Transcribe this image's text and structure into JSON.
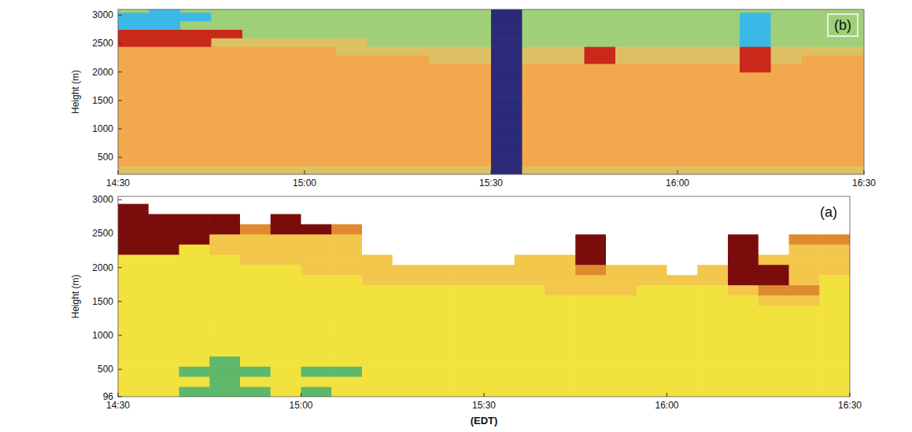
{
  "chart_data": [
    {
      "type": "heatmap",
      "title": "(b)",
      "y_label": "Height (m)",
      "x": [
        872.5,
        877.5,
        882.5,
        887.5,
        892.5,
        897.5,
        902.5,
        907.5,
        912.5,
        917.5,
        922.5,
        927.5,
        932.5,
        937.5,
        942.5,
        947.5,
        952.5,
        957.5,
        962.5,
        967.5,
        972.5,
        977.5,
        982.5,
        987.5
      ],
      "y": [
        275,
        425,
        575,
        725,
        875,
        1025,
        1175,
        1325,
        1475,
        1625,
        1775,
        1925,
        2075,
        2225,
        2375,
        2525,
        2675,
        2825,
        2975,
        3125
      ],
      "values": [
        [
          2,
          2,
          2,
          2,
          2,
          2,
          2,
          2,
          2,
          2,
          2,
          2,
          5,
          2,
          2,
          2,
          2,
          2,
          2,
          2,
          2,
          2,
          2,
          2
        ],
        [
          1,
          1,
          1,
          1,
          1,
          1,
          1,
          1,
          1,
          1,
          1,
          1,
          5,
          1,
          1,
          1,
          1,
          1,
          1,
          1,
          1,
          1,
          1,
          1
        ],
        [
          1,
          1,
          1,
          1,
          1,
          1,
          1,
          1,
          1,
          1,
          1,
          1,
          5,
          1,
          1,
          1,
          1,
          1,
          1,
          1,
          1,
          1,
          1,
          1
        ],
        [
          1,
          1,
          1,
          1,
          1,
          1,
          1,
          1,
          1,
          1,
          1,
          1,
          5,
          1,
          1,
          1,
          1,
          1,
          1,
          1,
          1,
          1,
          1,
          1
        ],
        [
          1,
          1,
          1,
          1,
          1,
          1,
          1,
          1,
          1,
          1,
          1,
          1,
          5,
          1,
          1,
          1,
          1,
          1,
          1,
          1,
          1,
          1,
          1,
          1
        ],
        [
          1,
          1,
          1,
          1,
          1,
          1,
          1,
          1,
          1,
          1,
          1,
          1,
          5,
          1,
          1,
          1,
          1,
          1,
          1,
          1,
          1,
          1,
          1,
          1
        ],
        [
          1,
          1,
          1,
          1,
          1,
          1,
          1,
          1,
          1,
          1,
          1,
          1,
          5,
          1,
          1,
          1,
          1,
          1,
          1,
          1,
          1,
          1,
          1,
          1
        ],
        [
          1,
          1,
          1,
          1,
          1,
          1,
          1,
          1,
          1,
          1,
          1,
          1,
          5,
          1,
          1,
          1,
          1,
          1,
          1,
          1,
          1,
          1,
          1,
          1
        ],
        [
          1,
          1,
          1,
          1,
          1,
          1,
          1,
          1,
          1,
          1,
          1,
          1,
          5,
          1,
          1,
          1,
          1,
          1,
          1,
          1,
          1,
          1,
          1,
          1
        ],
        [
          1,
          1,
          1,
          1,
          1,
          1,
          1,
          1,
          1,
          1,
          1,
          1,
          5,
          1,
          1,
          1,
          1,
          1,
          1,
          1,
          1,
          1,
          1,
          1
        ],
        [
          1,
          1,
          1,
          1,
          1,
          1,
          1,
          1,
          1,
          1,
          1,
          1,
          5,
          1,
          1,
          1,
          1,
          1,
          1,
          1,
          1,
          1,
          1,
          1
        ],
        [
          1,
          1,
          1,
          1,
          1,
          1,
          1,
          1,
          1,
          1,
          1,
          1,
          5,
          1,
          1,
          1,
          1,
          1,
          1,
          1,
          1,
          1,
          1,
          1
        ],
        [
          1,
          1,
          1,
          1,
          1,
          1,
          1,
          1,
          1,
          1,
          1,
          1,
          5,
          1,
          1,
          1,
          1,
          1,
          1,
          1,
          3,
          1,
          1,
          1
        ],
        [
          1,
          1,
          1,
          1,
          1,
          1,
          1,
          1,
          1,
          1,
          2,
          2,
          5,
          2,
          2,
          3,
          2,
          2,
          2,
          2,
          3,
          2,
          1,
          1
        ],
        [
          1,
          1,
          1,
          1,
          1,
          1,
          1,
          2,
          2,
          2,
          2,
          2,
          5,
          2,
          2,
          3,
          2,
          2,
          2,
          2,
          3,
          2,
          2,
          2
        ],
        [
          3,
          3,
          3,
          2,
          2,
          2,
          2,
          2,
          0,
          0,
          0,
          0,
          5,
          0,
          0,
          0,
          0,
          0,
          0,
          0,
          4,
          0,
          0,
          0
        ],
        [
          3,
          3,
          3,
          3,
          0,
          0,
          0,
          0,
          0,
          0,
          0,
          0,
          5,
          0,
          0,
          0,
          0,
          0,
          0,
          0,
          4,
          0,
          0,
          0
        ],
        [
          4,
          4,
          0,
          0,
          0,
          0,
          0,
          0,
          0,
          0,
          0,
          0,
          5,
          0,
          0,
          0,
          0,
          0,
          0,
          0,
          4,
          0,
          0,
          0
        ],
        [
          4,
          4,
          4,
          0,
          0,
          0,
          0,
          0,
          0,
          0,
          0,
          0,
          5,
          0,
          0,
          0,
          0,
          0,
          0,
          0,
          4,
          0,
          0,
          0
        ],
        [
          0,
          4,
          0,
          0,
          0,
          0,
          0,
          0,
          0,
          0,
          0,
          0,
          5,
          0,
          0,
          0,
          0,
          0,
          0,
          0,
          0,
          0,
          0,
          0
        ]
      ],
      "colors": [
        "#9fcf78",
        "#f2a84c",
        "#dcc063",
        "#c9281b",
        "#3bb9e6",
        "#2b2a78"
      ],
      "xlim": [
        870,
        990
      ],
      "ylim": [
        200,
        3100
      ],
      "xticks": [
        {
          "value": 870,
          "label": "14:30"
        },
        {
          "value": 900,
          "label": "15:00"
        },
        {
          "value": 930,
          "label": "15:30"
        },
        {
          "value": 960,
          "label": "16:00"
        },
        {
          "value": 990,
          "label": "16:30"
        }
      ],
      "yticks": [
        500,
        1000,
        1500,
        2000,
        2500,
        3000
      ]
    },
    {
      "type": "heatmap",
      "title": "(a)",
      "x_label": "(EDT)",
      "y_label": "Height (m)",
      "x": [
        872.5,
        877.5,
        882.5,
        887.5,
        892.5,
        897.5,
        902.5,
        907.5,
        912.5,
        917.5,
        922.5,
        927.5,
        932.5,
        937.5,
        942.5,
        947.5,
        952.5,
        957.5,
        962.5,
        967.5,
        972.5,
        977.5,
        982.5,
        987.5
      ],
      "y": [
        171,
        321,
        471,
        621,
        771,
        921,
        1071,
        1221,
        1371,
        1521,
        1671,
        1821,
        1971,
        2121,
        2271,
        2421,
        2571,
        2721,
        2871,
        3021
      ],
      "values": [
        [
          1,
          1,
          5,
          5,
          5,
          1,
          5,
          1,
          1,
          1,
          1,
          1,
          1,
          1,
          1,
          1,
          1,
          1,
          1,
          1,
          1,
          1,
          1,
          1
        ],
        [
          1,
          1,
          1,
          5,
          1,
          1,
          1,
          1,
          1,
          1,
          1,
          1,
          1,
          1,
          1,
          1,
          1,
          1,
          1,
          1,
          1,
          1,
          1,
          1
        ],
        [
          1,
          1,
          5,
          5,
          5,
          1,
          5,
          5,
          1,
          1,
          1,
          1,
          1,
          1,
          1,
          1,
          1,
          1,
          1,
          1,
          1,
          1,
          1,
          1
        ],
        [
          1,
          1,
          1,
          5,
          1,
          1,
          1,
          1,
          1,
          1,
          1,
          1,
          1,
          1,
          1,
          1,
          1,
          1,
          1,
          1,
          1,
          1,
          1,
          1
        ],
        [
          1,
          1,
          1,
          1,
          1,
          1,
          1,
          1,
          1,
          1,
          1,
          1,
          1,
          1,
          1,
          1,
          1,
          1,
          1,
          1,
          1,
          1,
          1,
          1
        ],
        [
          1,
          1,
          1,
          1,
          1,
          1,
          1,
          1,
          1,
          1,
          1,
          1,
          1,
          1,
          1,
          1,
          1,
          1,
          1,
          1,
          1,
          1,
          1,
          1
        ],
        [
          1,
          1,
          1,
          1,
          1,
          1,
          1,
          1,
          1,
          1,
          1,
          1,
          1,
          1,
          1,
          1,
          1,
          1,
          1,
          1,
          1,
          1,
          1,
          1
        ],
        [
          1,
          1,
          1,
          1,
          1,
          1,
          1,
          1,
          1,
          1,
          1,
          1,
          1,
          1,
          1,
          1,
          1,
          1,
          1,
          1,
          1,
          1,
          1,
          1
        ],
        [
          1,
          1,
          1,
          1,
          1,
          1,
          1,
          1,
          1,
          1,
          1,
          1,
          1,
          1,
          1,
          1,
          1,
          1,
          1,
          1,
          1,
          1,
          1,
          1
        ],
        [
          1,
          1,
          1,
          1,
          1,
          1,
          1,
          1,
          1,
          1,
          1,
          1,
          1,
          1,
          1,
          1,
          1,
          1,
          1,
          1,
          1,
          2,
          2,
          1
        ],
        [
          1,
          1,
          1,
          1,
          1,
          1,
          1,
          1,
          1,
          1,
          1,
          1,
          1,
          1,
          2,
          2,
          2,
          1,
          1,
          1,
          2,
          3,
          3,
          1
        ],
        [
          1,
          1,
          1,
          1,
          1,
          1,
          1,
          1,
          2,
          2,
          2,
          2,
          2,
          2,
          2,
          2,
          2,
          2,
          2,
          2,
          4,
          4,
          2,
          1
        ],
        [
          1,
          1,
          1,
          1,
          1,
          1,
          2,
          2,
          2,
          2,
          2,
          2,
          2,
          2,
          2,
          3,
          2,
          2,
          0,
          2,
          4,
          4,
          2,
          2
        ],
        [
          1,
          1,
          1,
          1,
          2,
          2,
          2,
          2,
          2,
          0,
          0,
          0,
          0,
          2,
          2,
          4,
          0,
          0,
          0,
          0,
          4,
          2,
          2,
          2
        ],
        [
          4,
          4,
          1,
          2,
          2,
          2,
          2,
          2,
          0,
          0,
          0,
          0,
          0,
          0,
          0,
          4,
          0,
          0,
          0,
          0,
          4,
          0,
          2,
          2
        ],
        [
          4,
          4,
          4,
          2,
          2,
          2,
          2,
          2,
          0,
          0,
          0,
          0,
          0,
          0,
          0,
          4,
          0,
          0,
          0,
          0,
          4,
          0,
          3,
          3
        ],
        [
          4,
          4,
          4,
          4,
          3,
          4,
          4,
          3,
          0,
          0,
          0,
          0,
          0,
          0,
          0,
          0,
          0,
          0,
          0,
          0,
          0,
          0,
          0,
          0
        ],
        [
          4,
          4,
          4,
          4,
          0,
          4,
          0,
          0,
          0,
          0,
          0,
          0,
          0,
          0,
          0,
          0,
          0,
          0,
          0,
          0,
          0,
          0,
          0,
          0
        ],
        [
          4,
          0,
          0,
          0,
          0,
          0,
          0,
          0,
          0,
          0,
          0,
          0,
          0,
          0,
          0,
          0,
          0,
          0,
          0,
          0,
          0,
          0,
          0,
          0
        ],
        [
          0,
          0,
          0,
          0,
          0,
          0,
          0,
          0,
          0,
          0,
          0,
          0,
          0,
          0,
          0,
          0,
          0,
          0,
          0,
          0,
          0,
          0,
          0,
          0
        ]
      ],
      "colors": [
        "#ffffff",
        "#f2e23e",
        "#f3c64c",
        "#e08a30",
        "#7a0c0c",
        "#5fb86a"
      ],
      "xlim": [
        870,
        990
      ],
      "ylim": [
        96,
        3050
      ],
      "xticks": [
        {
          "value": 870,
          "label": "14:30"
        },
        {
          "value": 900,
          "label": "15:00"
        },
        {
          "value": 930,
          "label": "15:30"
        },
        {
          "value": 960,
          "label": "16:00"
        },
        {
          "value": 990,
          "label": "16:30"
        }
      ],
      "yticks": [
        96,
        500,
        1000,
        1500,
        2000,
        2500,
        3000
      ]
    }
  ]
}
